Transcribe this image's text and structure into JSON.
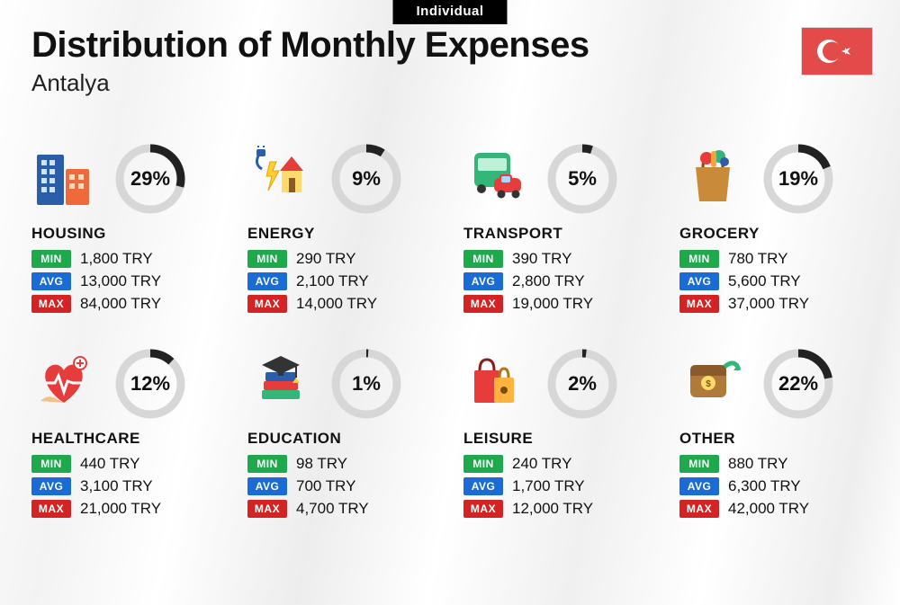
{
  "tab": "Individual",
  "title": "Distribution of Monthly Expenses",
  "subtitle": "Antalya",
  "currency": "TRY",
  "flag": {
    "bg": "#e34a4a",
    "fg": "#ffffff"
  },
  "donut": {
    "fill_color": "#222222",
    "track_color": "#d7d7d7",
    "stroke_width": 9,
    "radius": 34
  },
  "tags": {
    "min": {
      "label": "MIN",
      "color": "#1fa94c"
    },
    "avg": {
      "label": "AVG",
      "color": "#1b6bd6"
    },
    "max": {
      "label": "MAX",
      "color": "#d22424"
    }
  },
  "categories": [
    {
      "key": "housing",
      "name": "HOUSING",
      "percent": 29,
      "min": "1,800 TRY",
      "avg": "13,000 TRY",
      "max": "84,000 TRY"
    },
    {
      "key": "energy",
      "name": "ENERGY",
      "percent": 9,
      "min": "290 TRY",
      "avg": "2,100 TRY",
      "max": "14,000 TRY"
    },
    {
      "key": "transport",
      "name": "TRANSPORT",
      "percent": 5,
      "min": "390 TRY",
      "avg": "2,800 TRY",
      "max": "19,000 TRY"
    },
    {
      "key": "grocery",
      "name": "GROCERY",
      "percent": 19,
      "min": "780 TRY",
      "avg": "5,600 TRY",
      "max": "37,000 TRY"
    },
    {
      "key": "healthcare",
      "name": "HEALTHCARE",
      "percent": 12,
      "min": "440 TRY",
      "avg": "3,100 TRY",
      "max": "21,000 TRY"
    },
    {
      "key": "education",
      "name": "EDUCATION",
      "percent": 1,
      "min": "98 TRY",
      "avg": "700 TRY",
      "max": "4,700 TRY"
    },
    {
      "key": "leisure",
      "name": "LEISURE",
      "percent": 2,
      "min": "240 TRY",
      "avg": "1,700 TRY",
      "max": "12,000 TRY"
    },
    {
      "key": "other",
      "name": "OTHER",
      "percent": 22,
      "min": "880 TRY",
      "avg": "6,300 TRY",
      "max": "42,000 TRY"
    }
  ]
}
